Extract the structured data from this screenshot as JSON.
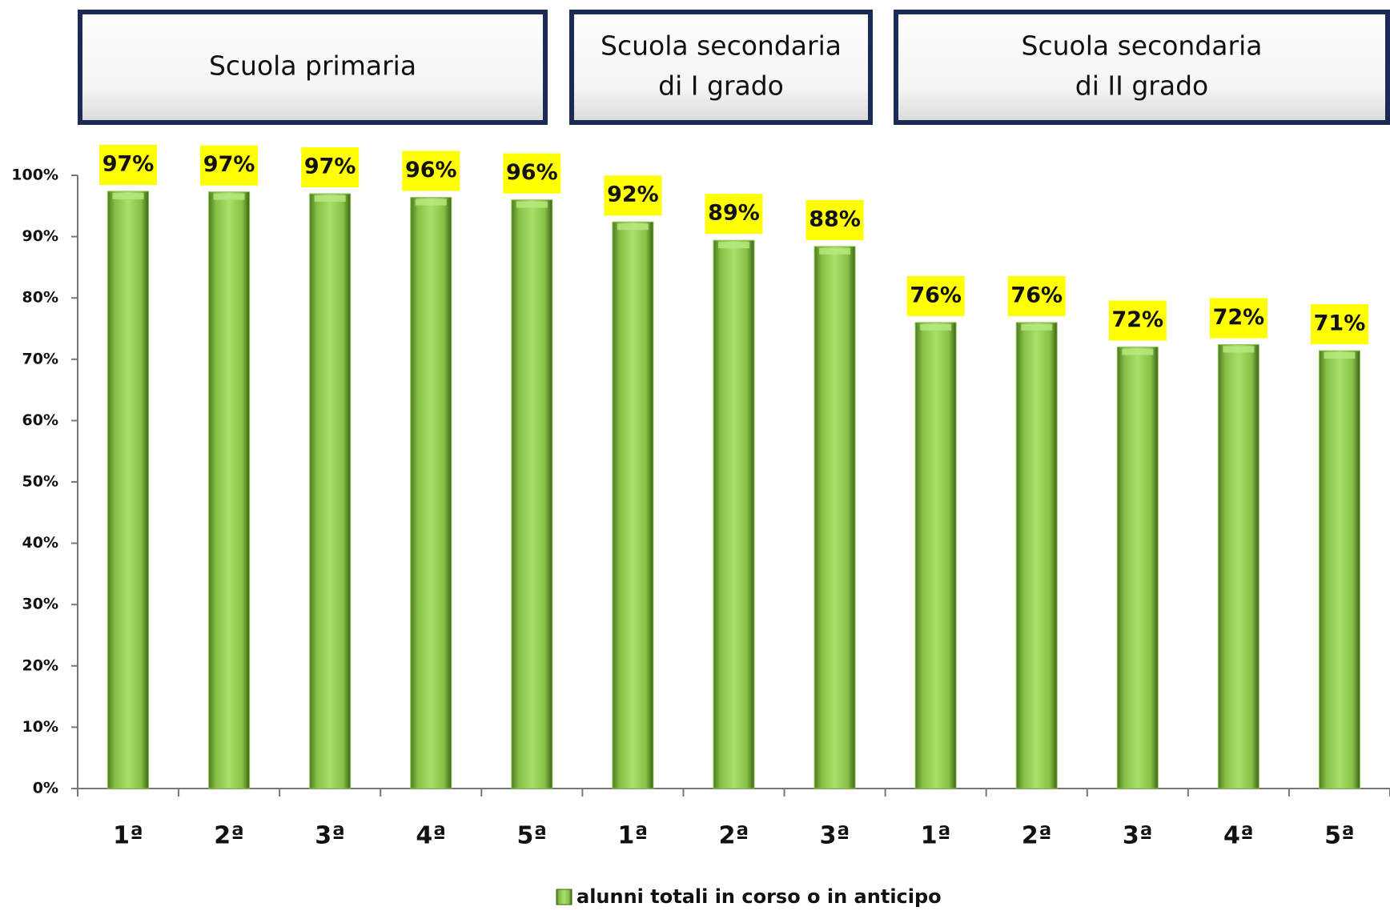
{
  "chart_data": {
    "type": "bar",
    "groups": [
      [
        "Scuola primaria"
      ],
      [
        "Scuola secondaria",
        "di I grado"
      ],
      [
        "Scuola secondaria",
        "di II grado"
      ]
    ],
    "categories": [
      "1ª",
      "2ª",
      "3ª",
      "4ª",
      "5ª",
      "1ª",
      "2ª",
      "3ª",
      "1ª",
      "2ª",
      "3ª",
      "4ª",
      "5ª"
    ],
    "series": [
      {
        "name": "alunni totali in corso o in anticipo",
        "color": "#8cc84b",
        "values": [
          97.4,
          97.3,
          97.0,
          96.4,
          96.0,
          92.4,
          89.4,
          88.4,
          76.0,
          76.0,
          72.0,
          72.4,
          71.4
        ],
        "value_labels": [
          "97%",
          "97%",
          "97%",
          "96%",
          "96%",
          "92%",
          "89%",
          "88%",
          "76%",
          "76%",
          "72%",
          "72%",
          "71%"
        ]
      }
    ],
    "ylim": [
      0,
      100
    ],
    "yticks": [
      {
        "value": 0,
        "label": "0%"
      },
      {
        "value": 10,
        "label": "10%"
      },
      {
        "value": 20,
        "label": "20%"
      },
      {
        "value": 30,
        "label": "30%"
      },
      {
        "value": 40,
        "label": "40%"
      },
      {
        "value": 50,
        "label": "50%"
      },
      {
        "value": 60,
        "label": "60%"
      },
      {
        "value": 70,
        "label": "70%"
      },
      {
        "value": 80,
        "label": "80%"
      },
      {
        "value": 90,
        "label": "90%"
      },
      {
        "value": 100,
        "label": "100%"
      }
    ],
    "label_color": "#ffff00"
  }
}
